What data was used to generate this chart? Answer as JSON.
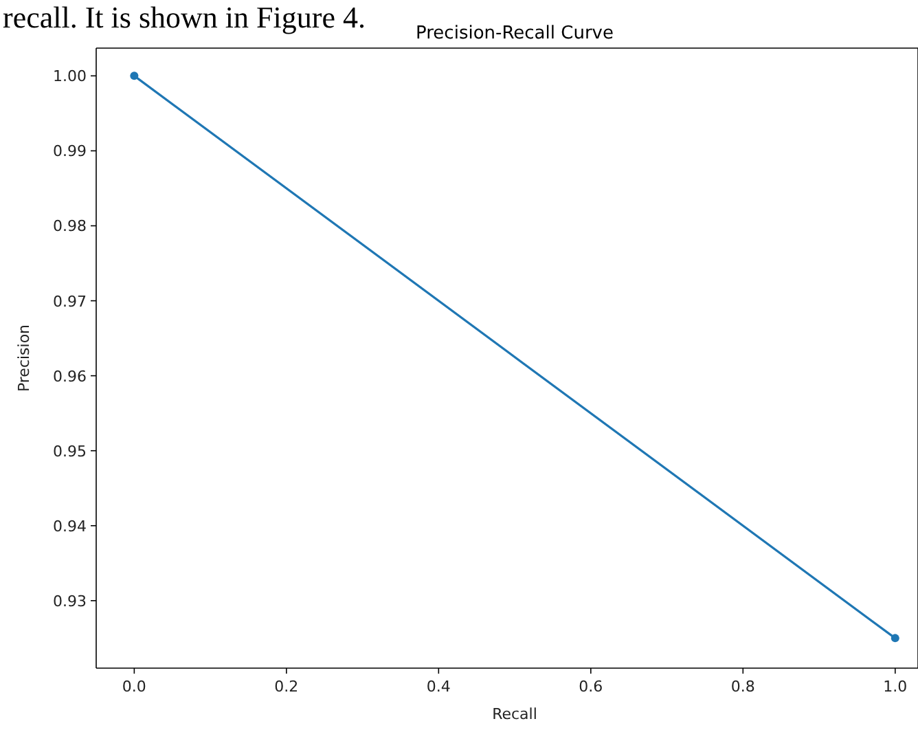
{
  "chart_data": {
    "type": "line",
    "title": "Precision-Recall Curve",
    "xlabel": "Recall",
    "ylabel": "Precision",
    "annotations": [
      "recall. It is shown in Figure 4."
    ],
    "x": [
      0,
      1
    ],
    "series": [
      {
        "color": "#1f77b4",
        "values": [
          1.0,
          0.925
        ]
      }
    ],
    "xlim": [
      -0.05,
      1.03
    ],
    "ylim": [
      0.921,
      1.0037
    ],
    "xticks": [
      {
        "value": 0,
        "label": "0.0"
      },
      {
        "value": 0.2,
        "label": "0.2"
      },
      {
        "value": 0.4,
        "label": "0.4"
      },
      {
        "value": 0.6,
        "label": "0.6"
      },
      {
        "value": 0.8,
        "label": "0.8"
      },
      {
        "value": 1,
        "label": "1.0"
      }
    ],
    "yticks": [
      0.93,
      0.94,
      0.95,
      0.96,
      0.97,
      0.98,
      0.99,
      {
        "value": 1,
        "label": "1.00"
      }
    ],
    "grid": false,
    "marker": "circle",
    "line_style": "solid"
  }
}
